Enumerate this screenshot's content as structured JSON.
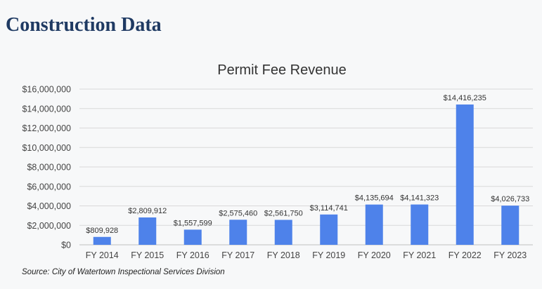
{
  "page": {
    "heading": "Construction Data",
    "source": "Source: City of Watertown Inspectional Services Division"
  },
  "colors": {
    "heading": "#1f3a63",
    "bar": "#4e82ea",
    "grid": "#d9d9d9",
    "text": "#444444"
  },
  "chart_data": {
    "type": "bar",
    "title": "Permit Fee Revenue",
    "xlabel": "",
    "ylabel": "",
    "categories": [
      "FY 2014",
      "FY 2015",
      "FY 2016",
      "FY 2017",
      "FY 2018",
      "FY 2019",
      "FY 2020",
      "FY 2021",
      "FY 2022",
      "FY 2023"
    ],
    "values": [
      809928,
      2809912,
      1557599,
      2575460,
      2561750,
      3114741,
      4135694,
      4141323,
      14416235,
      4026733
    ],
    "data_labels": [
      "$809,928",
      "$2,809,912",
      "$1,557,599",
      "$2,575,460",
      "$2,561,750",
      "$3,114,741",
      "$4,135,694",
      "$4,141,323",
      "$14,416,235",
      "$4,026,733"
    ],
    "ylim": [
      0,
      16000000
    ],
    "yticks": [
      0,
      2000000,
      4000000,
      6000000,
      8000000,
      10000000,
      12000000,
      14000000,
      16000000
    ],
    "ytick_labels": [
      "$0",
      "$2,000,000",
      "$4,000,000",
      "$6,000,000",
      "$8,000,000",
      "$10,000,000",
      "$12,000,000",
      "$14,000,000",
      "$16,000,000"
    ],
    "grid": true,
    "legend": "none"
  }
}
